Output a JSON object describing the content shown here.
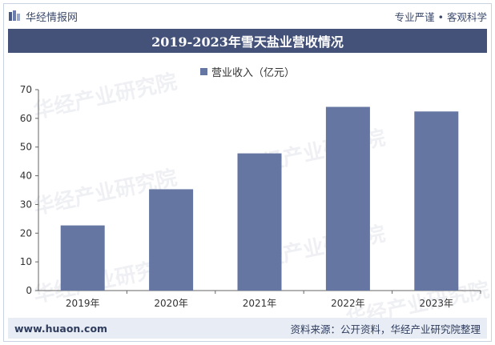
{
  "header": {
    "site_name": "华经情报网",
    "tagline": "专业严谨 • 客观科学"
  },
  "watermark_text": "华经产业研究院",
  "colors": {
    "title_bar": "#44527a",
    "bar": "#6576a2",
    "footer_bg": "#e8edf5"
  },
  "chart_data": {
    "type": "bar",
    "title": "2019-2023年雪天盐业营收情况",
    "categories": [
      "2019年",
      "2020年",
      "2021年",
      "2022年",
      "2023年"
    ],
    "series": [
      {
        "name": "营业收入（亿元）",
        "values": [
          22.7,
          35.3,
          47.8,
          64.0,
          62.4
        ]
      }
    ],
    "ylim": [
      0,
      70
    ],
    "yticks": [
      0,
      10,
      20,
      30,
      40,
      50,
      60,
      70
    ],
    "legend_position": "top-center",
    "grid": false
  },
  "footer": {
    "url": "www.huaon.com",
    "source": "资料来源：公开资料，华经产业研究院整理"
  }
}
